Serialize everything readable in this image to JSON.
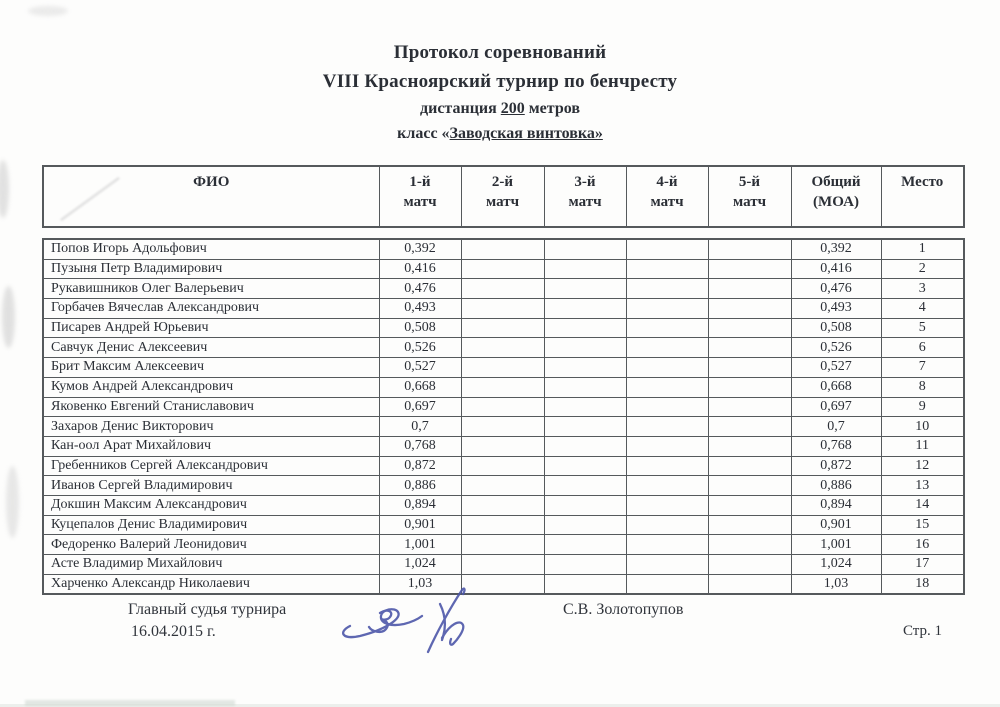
{
  "title": {
    "line1": "Протокол соревнований",
    "line2": "VIII Красноярский турнир по бенчресту",
    "line3_prefix": "дистанция ",
    "line3_underlined": "200",
    "line3_suffix": " метров",
    "line4_prefix": "класс «",
    "line4_underlined": "Заводская винтовка»"
  },
  "table": {
    "header": [
      {
        "line1": "ФИО",
        "line2": ""
      },
      {
        "line1": "1-й",
        "line2": "матч"
      },
      {
        "line1": "2-й",
        "line2": "матч"
      },
      {
        "line1": "3-й",
        "line2": "матч"
      },
      {
        "line1": "4-й",
        "line2": "матч"
      },
      {
        "line1": "5-й",
        "line2": "матч"
      },
      {
        "line1": "Общий",
        "line2": "(МОА)"
      },
      {
        "line1": "Место",
        "line2": ""
      }
    ],
    "rows": [
      {
        "name": "Попов Игорь Адольфович",
        "m1": "0,392",
        "m2": "",
        "m3": "",
        "m4": "",
        "m5": "",
        "total": "0,392",
        "place": "1"
      },
      {
        "name": "Пузыня Петр Владимирович",
        "m1": "0,416",
        "m2": "",
        "m3": "",
        "m4": "",
        "m5": "",
        "total": "0,416",
        "place": "2"
      },
      {
        "name": "Рукавишников Олег Валерьевич",
        "m1": "0,476",
        "m2": "",
        "m3": "",
        "m4": "",
        "m5": "",
        "total": "0,476",
        "place": "3"
      },
      {
        "name": "Горбачев Вячеслав Александрович",
        "m1": "0,493",
        "m2": "",
        "m3": "",
        "m4": "",
        "m5": "",
        "total": "0,493",
        "place": "4"
      },
      {
        "name": "Писарев Андрей Юрьевич",
        "m1": "0,508",
        "m2": "",
        "m3": "",
        "m4": "",
        "m5": "",
        "total": "0,508",
        "place": "5"
      },
      {
        "name": "Савчук Денис Алексеевич",
        "m1": "0,526",
        "m2": "",
        "m3": "",
        "m4": "",
        "m5": "",
        "total": "0,526",
        "place": "6"
      },
      {
        "name": "Брит Максим Алексеевич",
        "m1": "0,527",
        "m2": "",
        "m3": "",
        "m4": "",
        "m5": "",
        "total": "0,527",
        "place": "7"
      },
      {
        "name": "Кумов Андрей Александрович",
        "m1": "0,668",
        "m2": "",
        "m3": "",
        "m4": "",
        "m5": "",
        "total": "0,668",
        "place": "8"
      },
      {
        "name": "Яковенко Евгений Станиславович",
        "m1": "0,697",
        "m2": "",
        "m3": "",
        "m4": "",
        "m5": "",
        "total": "0,697",
        "place": "9"
      },
      {
        "name": "Захаров Денис Викторович",
        "m1": "0,7",
        "m2": "",
        "m3": "",
        "m4": "",
        "m5": "",
        "total": "0,7",
        "place": "10"
      },
      {
        "name": "Кан-оол Арат Михайлович",
        "m1": "0,768",
        "m2": "",
        "m3": "",
        "m4": "",
        "m5": "",
        "total": "0,768",
        "place": "11"
      },
      {
        "name": "Гребенников Сергей Александрович",
        "m1": "0,872",
        "m2": "",
        "m3": "",
        "m4": "",
        "m5": "",
        "total": "0,872",
        "place": "12"
      },
      {
        "name": "Иванов Сергей Владимирович",
        "m1": "0,886",
        "m2": "",
        "m3": "",
        "m4": "",
        "m5": "",
        "total": "0,886",
        "place": "13"
      },
      {
        "name": "Докшин Максим Александрович",
        "m1": "0,894",
        "m2": "",
        "m3": "",
        "m4": "",
        "m5": "",
        "total": "0,894",
        "place": "14"
      },
      {
        "name": "Куцепалов Денис Владимирович",
        "m1": "0,901",
        "m2": "",
        "m3": "",
        "m4": "",
        "m5": "",
        "total": "0,901",
        "place": "15"
      },
      {
        "name": "Федоренко Валерий Леонидович",
        "m1": "1,001",
        "m2": "",
        "m3": "",
        "m4": "",
        "m5": "",
        "total": "1,001",
        "place": "16"
      },
      {
        "name": "Асте Владимир Михайлович",
        "m1": "1,024",
        "m2": "",
        "m3": "",
        "m4": "",
        "m5": "",
        "total": "1,024",
        "place": "17"
      },
      {
        "name": "Харченко Александр Николаевич",
        "m1": "1,03",
        "m2": "",
        "m3": "",
        "m4": "",
        "m5": "",
        "total": "1,03",
        "place": "18"
      }
    ]
  },
  "footer": {
    "judge_label": "Главный судья турнира",
    "date": "16.04.2015 г.",
    "judge_name": "С.В. Золотопупов",
    "page": "Стр. 1"
  },
  "colors": {
    "ink_text": "#2b2f36",
    "table_border": "#55595c",
    "signature_ink": "#4d57a9"
  }
}
